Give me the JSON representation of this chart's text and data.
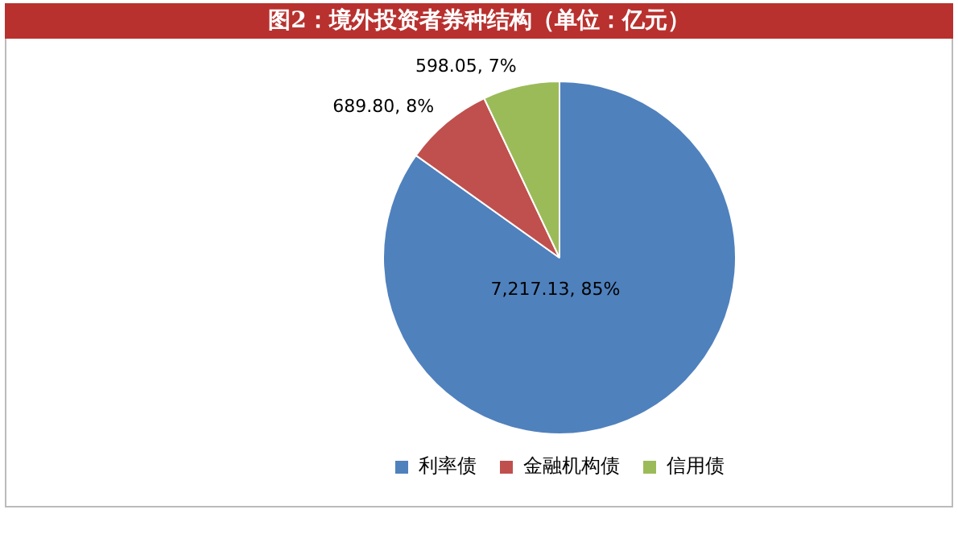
{
  "chart_data": {
    "type": "pie",
    "title": "图2：境外投资者券种结构（单位：亿元）",
    "categories": [
      "利率债",
      "金融机构债",
      "信用债"
    ],
    "values": [
      7217.13,
      689.8,
      598.05
    ],
    "colors": [
      "#4f81bd",
      "#c0504d",
      "#9bbb59"
    ],
    "value_labels": [
      "7,217.13, 85%",
      "689.80, 8%",
      "598.05, 7%"
    ],
    "legend": "bottom"
  }
}
